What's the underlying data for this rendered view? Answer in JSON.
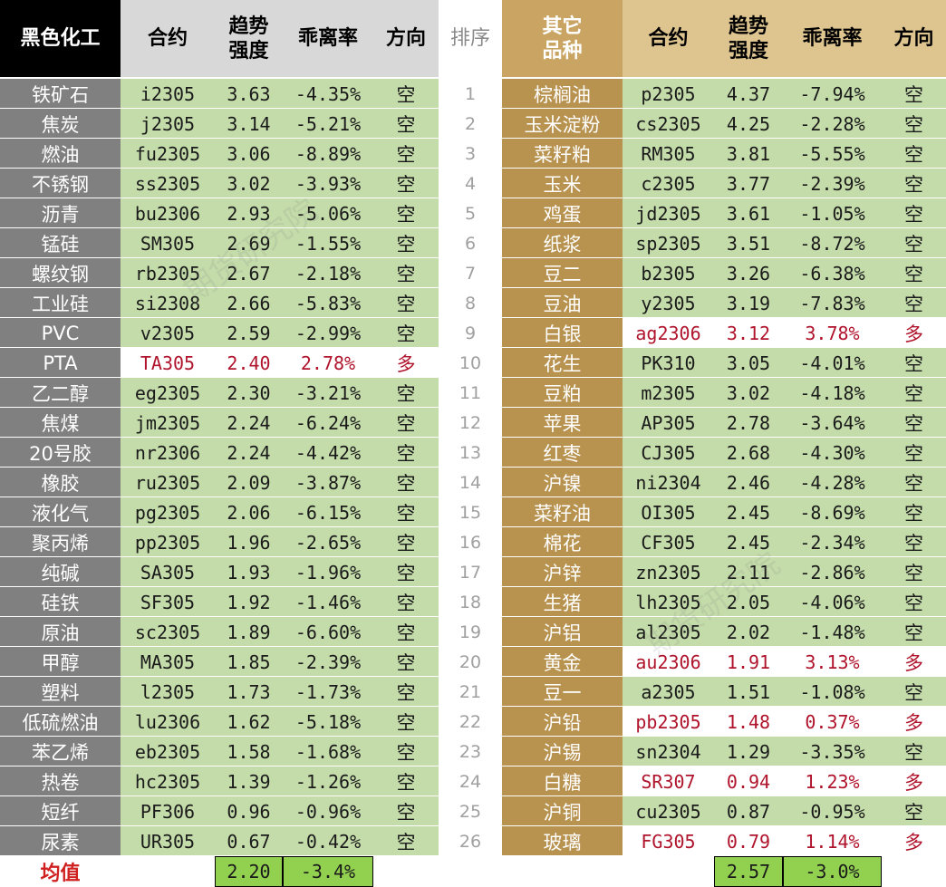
{
  "header": {
    "left_category": "黑色化工",
    "contract": "合约",
    "trend": "趋势\n强度",
    "deviation": "乖离率",
    "direction": "方向",
    "rank": "排序",
    "right_category": "其它\n品种"
  },
  "rank": [
    "1",
    "2",
    "3",
    "4",
    "5",
    "6",
    "7",
    "8",
    "9",
    "10",
    "11",
    "12",
    "13",
    "14",
    "15",
    "16",
    "17",
    "18",
    "19",
    "20",
    "21",
    "22",
    "23",
    "24",
    "25",
    "26"
  ],
  "left_rows": [
    {
      "name": "铁矿石",
      "contract": "i2305",
      "trend": "3.63",
      "dev": "-4.35%",
      "dir": "空"
    },
    {
      "name": "焦炭",
      "contract": "j2305",
      "trend": "3.14",
      "dev": "-5.21%",
      "dir": "空"
    },
    {
      "name": "燃油",
      "contract": "fu2305",
      "trend": "3.06",
      "dev": "-8.89%",
      "dir": "空"
    },
    {
      "name": "不锈钢",
      "contract": "ss2305",
      "trend": "3.02",
      "dev": "-3.93%",
      "dir": "空"
    },
    {
      "name": "沥青",
      "contract": "bu2306",
      "trend": "2.93",
      "dev": "-5.06%",
      "dir": "空"
    },
    {
      "name": "锰硅",
      "contract": "SM305",
      "trend": "2.69",
      "dev": "-1.55%",
      "dir": "空"
    },
    {
      "name": "螺纹钢",
      "contract": "rb2305",
      "trend": "2.67",
      "dev": "-2.18%",
      "dir": "空"
    },
    {
      "name": "工业硅",
      "contract": "si2308",
      "trend": "2.66",
      "dev": "-5.83%",
      "dir": "空"
    },
    {
      "name": "PVC",
      "contract": "v2305",
      "trend": "2.59",
      "dev": "-2.99%",
      "dir": "空"
    },
    {
      "name": "PTA",
      "contract": "TA305",
      "trend": "2.40",
      "dev": "2.78%",
      "dir": "多"
    },
    {
      "name": "乙二醇",
      "contract": "eg2305",
      "trend": "2.30",
      "dev": "-3.21%",
      "dir": "空"
    },
    {
      "name": "焦煤",
      "contract": "jm2305",
      "trend": "2.24",
      "dev": "-6.24%",
      "dir": "空"
    },
    {
      "name": "20号胶",
      "contract": "nr2306",
      "trend": "2.24",
      "dev": "-4.42%",
      "dir": "空"
    },
    {
      "name": "橡胶",
      "contract": "ru2305",
      "trend": "2.09",
      "dev": "-3.87%",
      "dir": "空"
    },
    {
      "name": "液化气",
      "contract": "pg2305",
      "trend": "2.06",
      "dev": "-6.15%",
      "dir": "空"
    },
    {
      "name": "聚丙烯",
      "contract": "pp2305",
      "trend": "1.96",
      "dev": "-2.65%",
      "dir": "空"
    },
    {
      "name": "纯碱",
      "contract": "SA305",
      "trend": "1.93",
      "dev": "-1.96%",
      "dir": "空"
    },
    {
      "name": "硅铁",
      "contract": "SF305",
      "trend": "1.92",
      "dev": "-1.46%",
      "dir": "空"
    },
    {
      "name": "原油",
      "contract": "sc2305",
      "trend": "1.89",
      "dev": "-6.60%",
      "dir": "空"
    },
    {
      "name": "甲醇",
      "contract": "MA305",
      "trend": "1.85",
      "dev": "-2.39%",
      "dir": "空"
    },
    {
      "name": "塑料",
      "contract": "l2305",
      "trend": "1.73",
      "dev": "-1.73%",
      "dir": "空"
    },
    {
      "name": "低硫燃油",
      "contract": "lu2306",
      "trend": "1.62",
      "dev": "-5.18%",
      "dir": "空"
    },
    {
      "name": "苯乙烯",
      "contract": "eb2305",
      "trend": "1.58",
      "dev": "-1.68%",
      "dir": "空"
    },
    {
      "name": "热卷",
      "contract": "hc2305",
      "trend": "1.39",
      "dev": "-1.26%",
      "dir": "空"
    },
    {
      "name": "短纤",
      "contract": "PF306",
      "trend": "0.96",
      "dev": "-0.96%",
      "dir": "空"
    },
    {
      "name": "尿素",
      "contract": "UR305",
      "trend": "0.67",
      "dev": "-0.42%",
      "dir": "空"
    }
  ],
  "right_rows": [
    {
      "name": "棕榈油",
      "contract": "p2305",
      "trend": "4.37",
      "dev": "-7.94%",
      "dir": "空"
    },
    {
      "name": "玉米淀粉",
      "contract": "cs2305",
      "trend": "4.25",
      "dev": "-2.28%",
      "dir": "空"
    },
    {
      "name": "菜籽粕",
      "contract": "RM305",
      "trend": "3.81",
      "dev": "-5.55%",
      "dir": "空"
    },
    {
      "name": "玉米",
      "contract": "c2305",
      "trend": "3.77",
      "dev": "-2.39%",
      "dir": "空"
    },
    {
      "name": "鸡蛋",
      "contract": "jd2305",
      "trend": "3.61",
      "dev": "-1.05%",
      "dir": "空"
    },
    {
      "name": "纸浆",
      "contract": "sp2305",
      "trend": "3.51",
      "dev": "-8.72%",
      "dir": "空"
    },
    {
      "name": "豆二",
      "contract": "b2305",
      "trend": "3.26",
      "dev": "-6.38%",
      "dir": "空"
    },
    {
      "name": "豆油",
      "contract": "y2305",
      "trend": "3.19",
      "dev": "-7.83%",
      "dir": "空"
    },
    {
      "name": "白银",
      "contract": "ag2306",
      "trend": "3.12",
      "dev": "3.78%",
      "dir": "多"
    },
    {
      "name": "花生",
      "contract": "PK310",
      "trend": "3.05",
      "dev": "-4.01%",
      "dir": "空"
    },
    {
      "name": "豆粕",
      "contract": "m2305",
      "trend": "3.02",
      "dev": "-4.18%",
      "dir": "空"
    },
    {
      "name": "苹果",
      "contract": "AP305",
      "trend": "2.78",
      "dev": "-3.64%",
      "dir": "空"
    },
    {
      "name": "红枣",
      "contract": "CJ305",
      "trend": "2.68",
      "dev": "-4.30%",
      "dir": "空"
    },
    {
      "name": "沪镍",
      "contract": "ni2304",
      "trend": "2.46",
      "dev": "-4.28%",
      "dir": "空"
    },
    {
      "name": "菜籽油",
      "contract": "OI305",
      "trend": "2.45",
      "dev": "-8.69%",
      "dir": "空"
    },
    {
      "name": "棉花",
      "contract": "CF305",
      "trend": "2.45",
      "dev": "-2.34%",
      "dir": "空"
    },
    {
      "name": "沪锌",
      "contract": "zn2305",
      "trend": "2.11",
      "dev": "-2.86%",
      "dir": "空"
    },
    {
      "name": "生猪",
      "contract": "lh2305",
      "trend": "2.05",
      "dev": "-4.06%",
      "dir": "空"
    },
    {
      "name": "沪铝",
      "contract": "al2305",
      "trend": "2.02",
      "dev": "-1.48%",
      "dir": "空"
    },
    {
      "name": "黄金",
      "contract": "au2306",
      "trend": "1.91",
      "dev": "3.13%",
      "dir": "多"
    },
    {
      "name": "豆一",
      "contract": "a2305",
      "trend": "1.51",
      "dev": "-1.08%",
      "dir": "空"
    },
    {
      "name": "沪铅",
      "contract": "pb2305",
      "trend": "1.48",
      "dev": "0.37%",
      "dir": "多"
    },
    {
      "name": "沪锡",
      "contract": "sn2304",
      "trend": "1.29",
      "dev": "-3.35%",
      "dir": "空"
    },
    {
      "name": "白糖",
      "contract": "SR307",
      "trend": "0.94",
      "dev": "1.23%",
      "dir": "多"
    },
    {
      "name": "沪铜",
      "contract": "cu2305",
      "trend": "0.87",
      "dev": "-0.95%",
      "dir": "空"
    },
    {
      "name": "玻璃",
      "contract": "FG305",
      "trend": "0.79",
      "dev": "1.14%",
      "dir": "多"
    }
  ],
  "average": {
    "label": "均值",
    "left_trend": "2.20",
    "left_dev": "-3.4%",
    "right_trend": "2.57",
    "right_dev": "-3.0%"
  },
  "watermark": "期货研究院",
  "colors": {
    "header_black": "#000000",
    "header_gold": "#c9a463",
    "left_name_gray": "#808080",
    "right_name_gold": "#b8924f",
    "row_green": "#c4dcaa",
    "long_text_red": "#b0142c",
    "average_green": "#92d050"
  }
}
